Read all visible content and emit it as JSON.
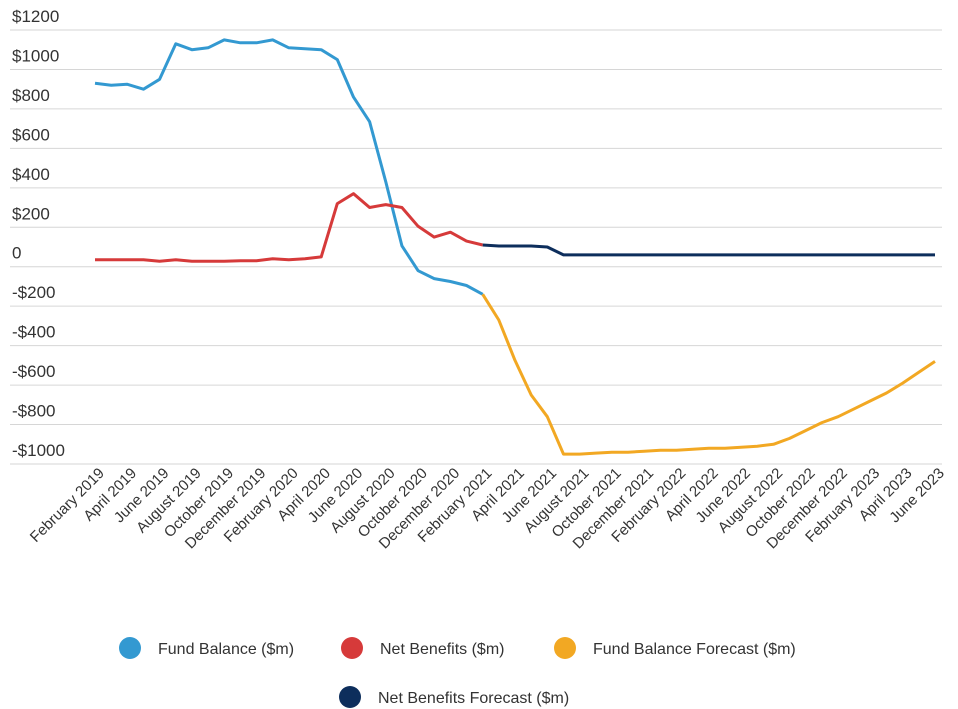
{
  "chart_data": {
    "type": "line",
    "categories": [
      "February 2019",
      null,
      "April 2019",
      null,
      "June 2019",
      null,
      "August 2019",
      null,
      "October 2019",
      null,
      "December 2019",
      null,
      "February 2020",
      null,
      "April 2020",
      null,
      "June 2020",
      null,
      "August 2020",
      null,
      "October 2020",
      null,
      "December 2020",
      null,
      "February 2021",
      null,
      "April 2021",
      null,
      "June 2021",
      null,
      "August 2021",
      null,
      "October 2021",
      null,
      "December 2021",
      null,
      "February 2022",
      null,
      "April 2022",
      null,
      "June 2022",
      null,
      "August 2022",
      null,
      "October 2022",
      null,
      "December 2022",
      null,
      "February 2023",
      null,
      "April 2023",
      null,
      "June 2023"
    ],
    "series": [
      {
        "name": "Fund Balance ($m)",
        "color": "#3399d1",
        "values": [
          930,
          920,
          925,
          900,
          950,
          1130,
          1100,
          1110,
          1150,
          1135,
          1135,
          1150,
          1110,
          1105,
          1100,
          1050,
          860,
          735,
          430,
          106,
          -20,
          -60,
          -75,
          -95,
          -140,
          null,
          null,
          null,
          null,
          null,
          null,
          null,
          null,
          null,
          null,
          null,
          null,
          null,
          null,
          null,
          null,
          null,
          null,
          null,
          null,
          null,
          null,
          null,
          null,
          null,
          null,
          null,
          null
        ]
      },
      {
        "name": "Net Benefits ($m)",
        "color": "#d63a3a",
        "values": [
          35,
          35,
          35,
          35,
          28,
          35,
          28,
          28,
          28,
          30,
          30,
          40,
          35,
          40,
          50,
          320,
          370,
          300,
          315,
          300,
          205,
          150,
          175,
          130,
          110,
          null,
          null,
          null,
          null,
          null,
          null,
          null,
          null,
          null,
          null,
          null,
          null,
          null,
          null,
          null,
          null,
          null,
          null,
          null,
          null,
          null,
          null,
          null,
          null,
          null,
          null,
          null,
          null
        ]
      },
      {
        "name": "Fund Balance Forecast ($m)",
        "color": "#f2a823",
        "values": [
          null,
          null,
          null,
          null,
          null,
          null,
          null,
          null,
          null,
          null,
          null,
          null,
          null,
          null,
          null,
          null,
          null,
          null,
          null,
          null,
          null,
          null,
          null,
          null,
          -140,
          -270,
          -475,
          -650,
          -760,
          -950,
          -950,
          -945,
          -940,
          -940,
          -935,
          -930,
          -930,
          -925,
          -920,
          -920,
          -915,
          -910,
          -900,
          -870,
          -830,
          -790,
          -760,
          -720,
          -680,
          -640,
          -590,
          -535,
          -480
        ]
      },
      {
        "name": "Net Benefits Forecast ($m)",
        "color": "#0d2e5c",
        "values": [
          null,
          null,
          null,
          null,
          null,
          null,
          null,
          null,
          null,
          null,
          null,
          null,
          null,
          null,
          null,
          null,
          null,
          null,
          null,
          null,
          null,
          null,
          null,
          null,
          110,
          105,
          105,
          105,
          100,
          60,
          60,
          60,
          60,
          60,
          60,
          60,
          60,
          60,
          60,
          60,
          60,
          60,
          60,
          60,
          60,
          60,
          60,
          60,
          60,
          60,
          60,
          60,
          60
        ]
      }
    ],
    "ylim": [
      -1000,
      1200
    ],
    "yticks": [
      {
        "value": 1200,
        "label": "$1200"
      },
      {
        "value": 1000,
        "label": "$1000"
      },
      {
        "value": 800,
        "label": "$800"
      },
      {
        "value": 600,
        "label": "$600"
      },
      {
        "value": 400,
        "label": "$400"
      },
      {
        "value": 200,
        "label": "$200"
      },
      0,
      {
        "value": -200,
        "label": "-$200"
      },
      {
        "value": -400,
        "label": "-$400"
      },
      {
        "value": -600,
        "label": "-$600"
      },
      {
        "value": -800,
        "label": "-$800"
      },
      {
        "value": -1000,
        "label": "-$1000"
      }
    ],
    "grid": true
  }
}
